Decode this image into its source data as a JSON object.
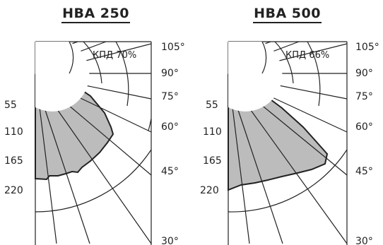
{
  "panels": [
    {
      "title": "НВА 250",
      "efficiency": "КПД 70%",
      "radial_labels": [
        "55",
        "110",
        "165",
        "220"
      ],
      "angle_labels": [
        "105°",
        "90°",
        "75°",
        "60°",
        "45°",
        "30°"
      ]
    },
    {
      "title": "НВА 500",
      "efficiency": "КПД 66%",
      "radial_labels": [
        "55",
        "110",
        "165",
        "220"
      ],
      "angle_labels": [
        "105°",
        "90°",
        "75°",
        "60°",
        "45°",
        "30°"
      ]
    }
  ],
  "colors": {
    "fill": "#bcbcbc",
    "stroke": "#222222",
    "grid": "#222222",
    "background": "#ffffff"
  }
}
